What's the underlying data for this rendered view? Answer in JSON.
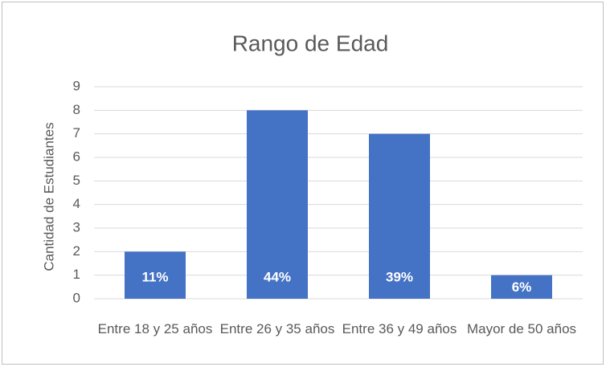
{
  "chart_data": {
    "type": "bar",
    "title": "Rango de Edad",
    "y_label": "Cantidad de Estudiantes",
    "categories": [
      "Entre 18 y 25 años",
      "Entre 26 y 35 años",
      "Entre 36 y 49 años",
      "Mayor de 50 años"
    ],
    "values": [
      2,
      8,
      7,
      1
    ],
    "data_labels": [
      "11%",
      "44%",
      "39%",
      "6%"
    ],
    "color": "#4472c4",
    "ylim": [
      0,
      9
    ],
    "yticks": [
      0,
      1,
      2,
      3,
      4,
      5,
      6,
      7,
      8,
      9
    ],
    "grid": true
  }
}
